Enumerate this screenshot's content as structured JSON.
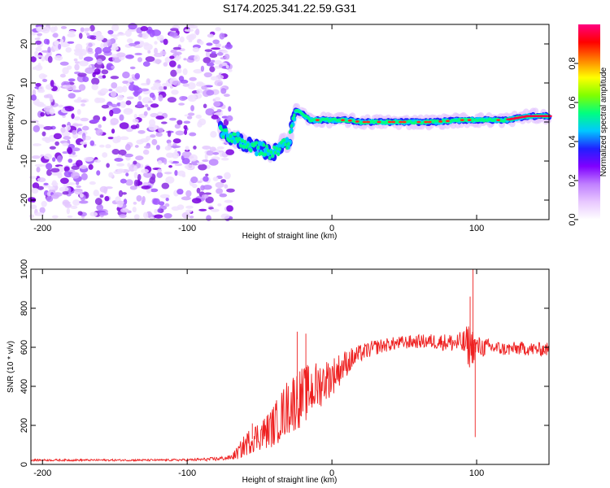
{
  "title": "S174.2025.341.22.59.G31",
  "chart_data": [
    {
      "type": "heatmap",
      "id": "spectrogram",
      "xlabel": "Height of straight line (km)",
      "ylabel": "Frequency (Hz)",
      "xlim": [
        -208,
        150
      ],
      "ylim": [
        -25,
        25
      ],
      "xticks": [
        -200,
        -100,
        0,
        100
      ],
      "xtick_labels": [
        "-200",
        "-100",
        "0",
        "100"
      ],
      "yticks": [
        20,
        10,
        0,
        -10,
        -20
      ],
      "ytick_labels": [
        "20",
        "10",
        "0",
        "-10",
        "-20"
      ],
      "colorbar": {
        "label": "Normalized spectral amplitude",
        "range": [
          0,
          1
        ],
        "ticks": [
          0.0,
          0.2,
          0.4,
          0.6,
          0.8
        ],
        "tick_labels": [
          "0.0",
          "0.2",
          "0.4",
          "0.6",
          "0.8"
        ],
        "colors": [
          "#ffffff",
          "#e8c8ff",
          "#c080ff",
          "#8000ff",
          "#2020ff",
          "#00c8ff",
          "#00ff80",
          "#80ff00",
          "#ffff00",
          "#ff8000",
          "#ff0000",
          "#ff0080"
        ]
      },
      "noise_region": {
        "x": [
          -208,
          -70
        ],
        "y": [
          -25,
          25
        ]
      },
      "ridge": {
        "x": [
          -77,
          -70,
          -62,
          -55,
          -48,
          -42,
          -37,
          -34,
          -30,
          -25,
          -20,
          -15,
          -10,
          0,
          10,
          20,
          30,
          50,
          70,
          90,
          100,
          120,
          135,
          150
        ],
        "y": [
          -2,
          -4,
          -5,
          -6.5,
          -7,
          -8,
          -7.5,
          -5,
          -5.5,
          3,
          2,
          0.5,
          0.5,
          0.5,
          0.5,
          0,
          0,
          0,
          0,
          0.5,
          0.5,
          0.5,
          1.5,
          1.5
        ]
      }
    },
    {
      "type": "line",
      "id": "snr",
      "xlabel": "Height of straight line (km)",
      "ylabel": "SNR (10 * v/v)",
      "xlim": [
        -208,
        150
      ],
      "ylim": [
        0,
        1000
      ],
      "xticks": [
        -200,
        -100,
        0,
        100
      ],
      "xtick_labels": [
        "-200",
        "-100",
        "0",
        "100"
      ],
      "yticks": [
        0,
        200,
        400,
        600,
        800,
        1000
      ],
      "ytick_labels": [
        "0",
        "200",
        "400",
        "600",
        "800",
        "1000"
      ],
      "color": "#ee2020",
      "series": [
        {
          "name": "SNR",
          "x": [
            -208,
            -180,
            -150,
            -120,
            -100,
            -90,
            -80,
            -70,
            -65,
            -60,
            -55,
            -50,
            -45,
            -40,
            -35,
            -30,
            -25,
            -20,
            -15,
            -10,
            -5,
            0,
            10,
            20,
            30,
            40,
            50,
            60,
            70,
            80,
            90,
            95,
            100,
            110,
            120,
            130,
            140,
            150
          ],
          "y": [
            22,
            22,
            22,
            22,
            23,
            25,
            28,
            35,
            60,
            100,
            130,
            150,
            170,
            200,
            250,
            300,
            330,
            350,
            380,
            400,
            430,
            450,
            520,
            570,
            600,
            615,
            625,
            630,
            630,
            625,
            620,
            610,
            600,
            600,
            590,
            595,
            590,
            590
          ],
          "noise": [
            5,
            5,
            5,
            5,
            6,
            8,
            10,
            12,
            35,
            60,
            70,
            80,
            90,
            110,
            130,
            150,
            160,
            150,
            140,
            130,
            110,
            100,
            70,
            45,
            40,
            35,
            35,
            35,
            40,
            45,
            60,
            120,
            60,
            40,
            35,
            35,
            35,
            35
          ]
        }
      ],
      "spikes": [
        {
          "x": 97.5,
          "y": 1000
        },
        {
          "x": 95.5,
          "y": 860
        },
        {
          "x": 99,
          "y": 140
        },
        {
          "x": -24,
          "y": 680
        },
        {
          "x": -18,
          "y": 670
        },
        {
          "x": -55,
          "y": 210
        }
      ]
    }
  ]
}
